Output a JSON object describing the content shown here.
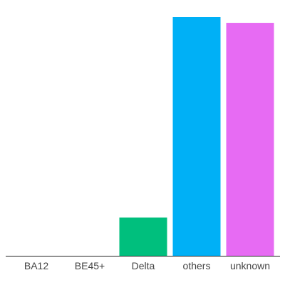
{
  "chart_data": {
    "type": "bar",
    "categories": [
      "BA12",
      "BE45+",
      "Delta",
      "others",
      "unknown"
    ],
    "values": [
      0,
      0,
      16,
      100,
      97.6
    ],
    "colors": [
      "#F8766D",
      "#A3A500",
      "#00BF7D",
      "#00B0F6",
      "#E76BF3"
    ],
    "title": "",
    "xlabel": "",
    "ylabel": "",
    "ylim": [
      0,
      100
    ],
    "grid": false,
    "legend": "none"
  }
}
